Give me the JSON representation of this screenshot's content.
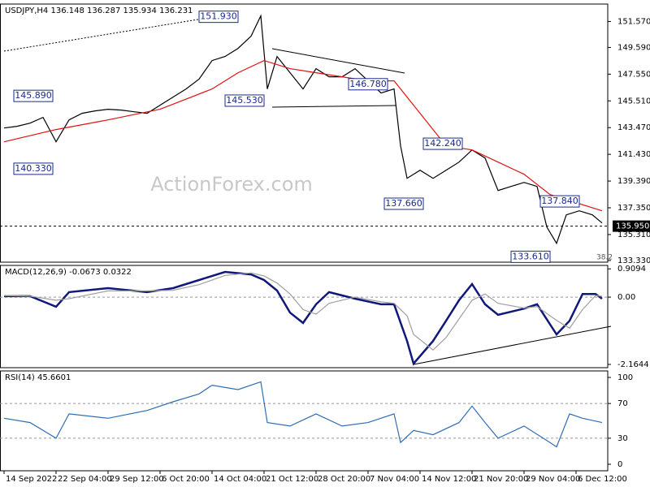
{
  "chart_data": [
    {
      "type": "line",
      "title": "USDJPY,H4  136.148 136.287 135.934 136.231",
      "watermark": "ActionForex.com",
      "xlim": [
        -1.25,
        185.75
      ],
      "ylim": [
        133.2,
        152.9
      ],
      "yticks": [
        {
          "value": 151.57,
          "label": "151.570"
        },
        {
          "value": 149.59,
          "label": "149.590"
        },
        {
          "value": 147.55,
          "label": "147.550"
        },
        {
          "value": 145.51,
          "label": "145.510"
        },
        {
          "value": 143.47,
          "label": "143.470"
        },
        {
          "value": 141.43,
          "label": "141.430"
        },
        {
          "value": 139.39,
          "label": "139.390"
        },
        {
          "value": 137.35,
          "label": "137.350"
        },
        {
          "value": 135.31,
          "label": "135.310"
        },
        {
          "value": 133.33,
          "label": "133.330"
        }
      ],
      "series": [
        {
          "color": "#000000",
          "x": [
            0,
            4,
            8,
            12,
            16,
            20,
            24,
            28,
            32,
            36,
            40,
            44,
            48,
            52,
            56,
            60,
            64,
            68,
            72,
            76,
            79,
            81,
            84,
            88,
            92,
            96,
            100,
            104,
            108,
            112,
            116,
            120,
            122,
            124,
            128,
            132,
            136,
            140,
            144,
            148,
            152,
            156,
            160,
            164,
            167,
            170,
            173,
            177,
            181,
            184
          ],
          "values": [
            143.44,
            143.57,
            143.81,
            144.25,
            142.39,
            144.06,
            144.56,
            144.75,
            144.87,
            144.81,
            144.68,
            144.56,
            145.18,
            145.8,
            146.42,
            147.17,
            148.59,
            148.9,
            149.52,
            150.45,
            152.0,
            146.42,
            148.9,
            147.66,
            146.42,
            147.97,
            147.35,
            147.35,
            147.97,
            147.04,
            146.11,
            146.42,
            142.08,
            139.6,
            140.22,
            139.6,
            140.22,
            140.84,
            141.77,
            141.15,
            138.67,
            138.98,
            139.29,
            138.98,
            135.88,
            134.64,
            136.81,
            137.12,
            136.81,
            136.19
          ]
        },
        {
          "color": "#e01010",
          "x": [
            0,
            16,
            32,
            48,
            64,
            72,
            80,
            88,
            96,
            104,
            112,
            120,
            128,
            136,
            144,
            152,
            160,
            168,
            176,
            184
          ],
          "values": [
            142.39,
            143.32,
            144.06,
            144.87,
            146.42,
            147.66,
            148.59,
            147.97,
            147.66,
            147.35,
            147.04,
            147.04,
            144.56,
            142.08,
            141.77,
            140.84,
            139.91,
            138.36,
            137.74,
            137.12
          ]
        }
      ],
      "annotations": [
        {
          "x": 66,
          "value": 151.93,
          "label": "151.930"
        },
        {
          "x": 9,
          "value": 145.89,
          "label": "145.890"
        },
        {
          "x": 9,
          "value": 140.33,
          "label": "140.330"
        },
        {
          "x": 74,
          "value": 145.53,
          "label": "145.530"
        },
        {
          "x": 112,
          "value": 146.78,
          "label": "146.780"
        },
        {
          "x": 135,
          "value": 142.24,
          "label": "142.240"
        },
        {
          "x": 123,
          "value": 137.66,
          "label": "137.660"
        },
        {
          "x": 171,
          "value": 137.84,
          "label": "137.840"
        },
        {
          "x": 162,
          "value": 133.61,
          "label": "133.610"
        }
      ],
      "current_price": {
        "value": 135.95,
        "label": "135.950"
      },
      "fib_level": 38.2
    },
    {
      "type": "macd",
      "title": "MACD(12,26,9) -0.0673 0.0322",
      "xlim": [
        -1.25,
        185.75
      ],
      "ylim": [
        -2.27,
        1.02
      ],
      "yticks": [
        0.9094,
        {
          "value": 0,
          "label": "0.00"
        },
        -2.1644
      ],
      "levels": [
        0
      ],
      "series": [
        {
          "color": "#10187a",
          "x": [
            0,
            8,
            16,
            20,
            32,
            44,
            52,
            60,
            68,
            76,
            80,
            84,
            88,
            92,
            96,
            100,
            108,
            116,
            120,
            124,
            126,
            132,
            136,
            140,
            144,
            148,
            152,
            160,
            164,
            170,
            174,
            178,
            182,
            184
          ],
          "values": [
            0.03,
            0.03,
            -0.31,
            0.16,
            0.29,
            0.16,
            0.29,
            0.55,
            0.81,
            0.73,
            0.55,
            0.21,
            -0.5,
            -0.83,
            -0.23,
            0.16,
            -0.05,
            -0.23,
            -0.23,
            -1.41,
            -2.14,
            -1.41,
            -0.76,
            -0.1,
            0.42,
            -0.23,
            -0.57,
            -0.37,
            -0.23,
            -1.2,
            -0.76,
            0.1,
            0.1,
            -0.05
          ]
        },
        {
          "color": "#a0a0a0",
          "x": [
            0,
            8,
            16,
            20,
            32,
            44,
            52,
            60,
            68,
            76,
            80,
            84,
            88,
            92,
            96,
            100,
            108,
            116,
            120,
            124,
            126,
            132,
            136,
            140,
            144,
            148,
            152,
            160,
            164,
            170,
            174,
            178,
            182,
            184
          ],
          "values": [
            0.05,
            0.03,
            -0.1,
            -0.05,
            0.2,
            0.2,
            0.22,
            0.4,
            0.7,
            0.78,
            0.68,
            0.45,
            0.1,
            -0.4,
            -0.55,
            -0.2,
            0.0,
            -0.15,
            -0.2,
            -0.6,
            -1.2,
            -1.7,
            -1.3,
            -0.7,
            -0.1,
            0.1,
            -0.2,
            -0.35,
            -0.3,
            -0.75,
            -1.0,
            -0.4,
            0.05,
            0.03
          ]
        }
      ]
    },
    {
      "type": "rsi",
      "title": "RSI(14) 45.6601",
      "xlim": [
        -1.25,
        185.75
      ],
      "ylim": [
        -7.5,
        107.5
      ],
      "yticks": [
        100,
        70,
        30,
        0
      ],
      "levels": [
        70,
        30
      ],
      "xticks": [
        {
          "value": 0,
          "label": "14 Sep 2022"
        },
        {
          "value": 16,
          "label": "22 Sep 04:00"
        },
        {
          "value": 32,
          "label": "29 Sep 12:00"
        },
        {
          "value": 48,
          "label": "6 Oct 20:00"
        },
        {
          "value": 64,
          "label": "14 Oct 04:00"
        },
        {
          "value": 80,
          "label": "21 Oct 12:00"
        },
        {
          "value": 96,
          "label": "28 Oct 20:00"
        },
        {
          "value": 112,
          "label": "7 Nov 04:00"
        },
        {
          "value": 128,
          "label": "14 Nov 12:00"
        },
        {
          "value": 144,
          "label": "21 Nov 20:00"
        },
        {
          "value": 160,
          "label": "29 Nov 04:00"
        },
        {
          "value": 176,
          "label": "6 Dec 12:00"
        }
      ],
      "series": [
        {
          "color": "#2f6db5",
          "x": [
            0,
            8,
            16,
            20,
            32,
            44,
            52,
            60,
            64,
            72,
            79,
            81,
            88,
            96,
            104,
            112,
            120,
            122,
            126,
            132,
            140,
            144,
            148,
            152,
            160,
            168,
            170,
            174,
            178,
            184
          ],
          "values": [
            53,
            48,
            30,
            58,
            53,
            62,
            72,
            81,
            91,
            86,
            95,
            48,
            44,
            58,
            44,
            48,
            58,
            25,
            39,
            34,
            48,
            67,
            48,
            30,
            44,
            25,
            20,
            58,
            53,
            48
          ]
        }
      ]
    }
  ]
}
